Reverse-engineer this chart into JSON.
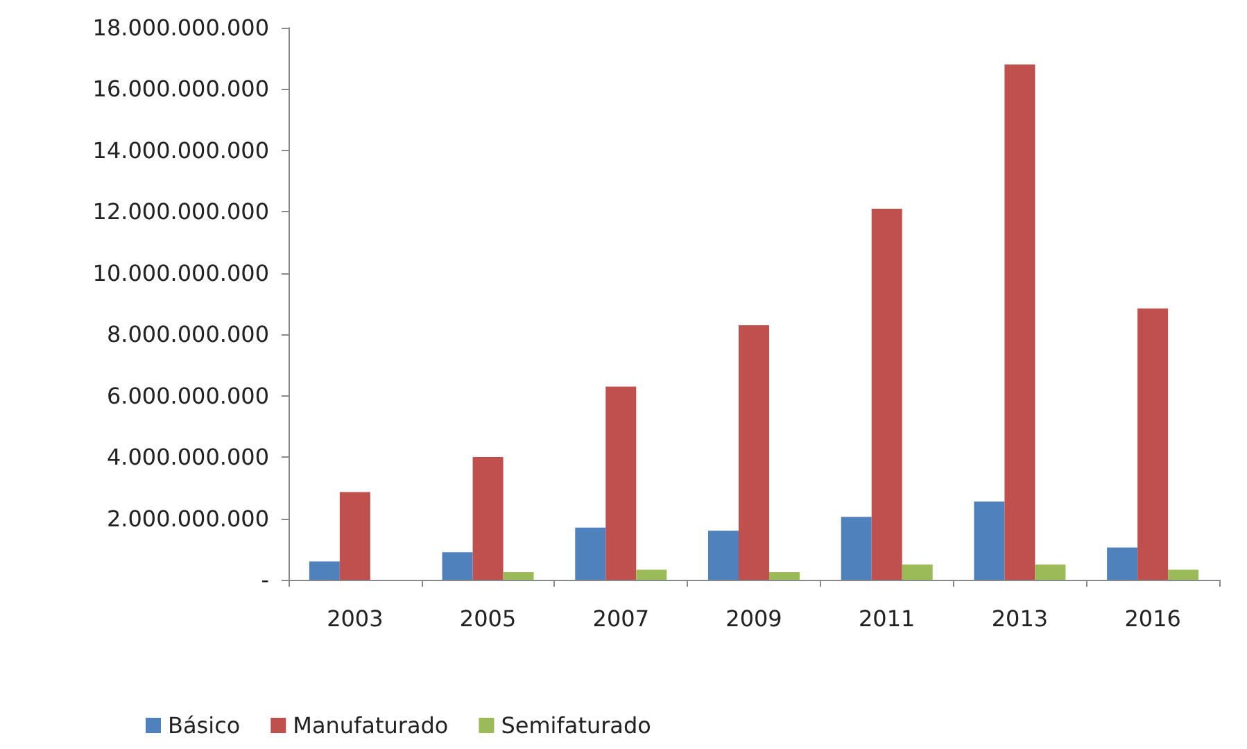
{
  "chart_data": {
    "type": "bar",
    "categories": [
      "2003",
      "2005",
      "2007",
      "2009",
      "2011",
      "2013",
      "2016"
    ],
    "series": [
      {
        "name": "Básico",
        "color": "#4f81bd",
        "values": [
          600000000,
          900000000,
          1700000000,
          1600000000,
          2050000000,
          2550000000,
          1050000000
        ]
      },
      {
        "name": "Manufaturado",
        "color": "#c0504d",
        "values": [
          2860000000,
          4000000000,
          6300000000,
          8300000000,
          12100000000,
          16800000000,
          8850000000
        ]
      },
      {
        "name": "Semifaturado",
        "color": "#9bbb59",
        "values": [
          0,
          250000000,
          330000000,
          250000000,
          500000000,
          500000000,
          330000000
        ]
      }
    ],
    "ylim": [
      0,
      18000000000
    ],
    "yticks": [
      {
        "value": 0,
        "label": "-"
      },
      {
        "value": 2000000000,
        "label": "2.000.000.000"
      },
      {
        "value": 4000000000,
        "label": "4.000.000.000"
      },
      {
        "value": 6000000000,
        "label": "6.000.000.000"
      },
      {
        "value": 8000000000,
        "label": "8.000.000.000"
      },
      {
        "value": 10000000000,
        "label": "10.000.000.000"
      },
      {
        "value": 12000000000,
        "label": "12.000.000.000"
      },
      {
        "value": 14000000000,
        "label": "14.000.000.000"
      },
      {
        "value": 16000000000,
        "label": "16.000.000.000"
      },
      {
        "value": 18000000000,
        "label": "18.000.000.000"
      }
    ],
    "grid": false,
    "legend": "bottom"
  }
}
